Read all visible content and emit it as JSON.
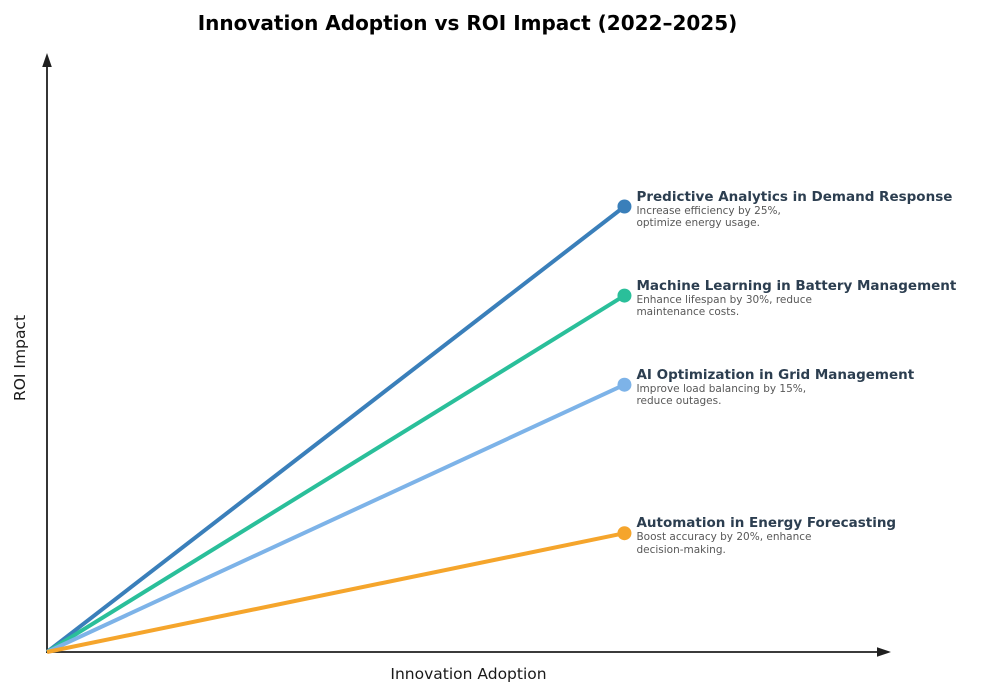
{
  "chart_data": {
    "type": "line",
    "title": "Innovation Adoption vs ROI Impact (2022–2025)",
    "xlabel": "Innovation Adoption",
    "ylabel": "ROI Impact",
    "xlim": [
      0,
      1
    ],
    "ylim": [
      0,
      1
    ],
    "grid": false,
    "axes": {
      "color": "#1f1f1f",
      "arrowheads": true,
      "ticks": "none"
    },
    "annotation_style": {
      "title_color": "#2c3e50",
      "desc_color": "#585858"
    },
    "legend": "inline annotations at line endpoints, right side",
    "series": [
      {
        "name": "Predictive Analytics in Demand Response",
        "description_lines": [
          "Increase efficiency by 25%,",
          "optimize energy usage."
        ],
        "color": "#3a7fba",
        "x": [
          0,
          0.685
        ],
        "y": [
          0,
          0.75
        ],
        "marker": "circle"
      },
      {
        "name": "Machine Learning in Battery Management",
        "description_lines": [
          "Enhance lifespan by 30%, reduce",
          "maintenance costs."
        ],
        "color": "#2abf9a",
        "x": [
          0,
          0.685
        ],
        "y": [
          0,
          0.6
        ],
        "marker": "circle"
      },
      {
        "name": "AI Optimization in Grid Management",
        "description_lines": [
          "Improve load balancing by 15%,",
          "reduce outages."
        ],
        "color": "#7db3e8",
        "x": [
          0,
          0.685
        ],
        "y": [
          0,
          0.45
        ],
        "marker": "circle"
      },
      {
        "name": "Automation in Energy Forecasting",
        "description_lines": [
          "Boost accuracy by 20%, enhance",
          "decision-making."
        ],
        "color": "#f5a52c",
        "x": [
          0,
          0.685
        ],
        "y": [
          0,
          0.2
        ],
        "marker": "circle"
      }
    ]
  }
}
